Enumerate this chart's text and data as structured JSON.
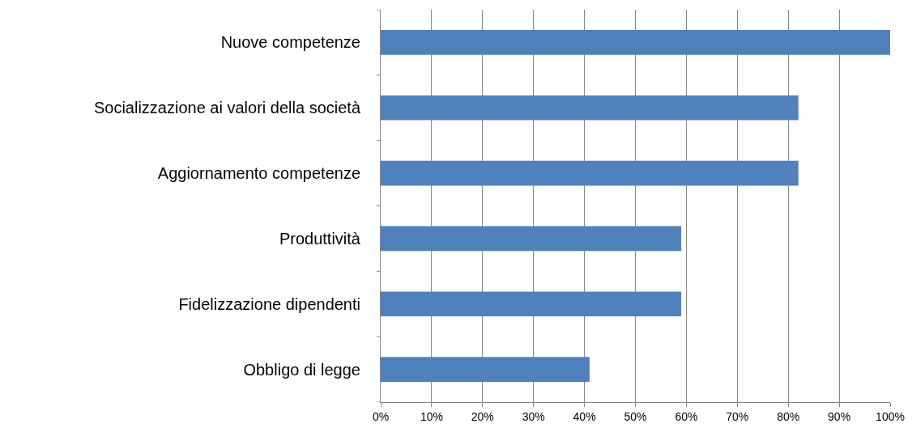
{
  "chart_data": {
    "type": "bar",
    "orientation": "horizontal",
    "categories": [
      "Nuove competenze",
      "Socializzazione ai valori della società",
      "Aggiornamento competenze",
      "Produttività",
      "Fidelizzazione dipendenti",
      "Obbligo di legge"
    ],
    "values": [
      100,
      82,
      82,
      59,
      59,
      41
    ],
    "color": "#4f81bd",
    "xlim": [
      0,
      100
    ],
    "xticks": [
      {
        "value": 0,
        "label": "0%"
      },
      {
        "value": 10,
        "label": "10%"
      },
      {
        "value": 20,
        "label": "20%"
      },
      {
        "value": 30,
        "label": "30%"
      },
      {
        "value": 40,
        "label": "40%"
      },
      {
        "value": 50,
        "label": "50%"
      },
      {
        "value": 60,
        "label": "60%"
      },
      {
        "value": 70,
        "label": "70%"
      },
      {
        "value": 80,
        "label": "80%"
      },
      {
        "value": 90,
        "label": "90%"
      },
      {
        "value": 100,
        "label": "100%"
      }
    ],
    "grid": "x",
    "legend": false
  }
}
